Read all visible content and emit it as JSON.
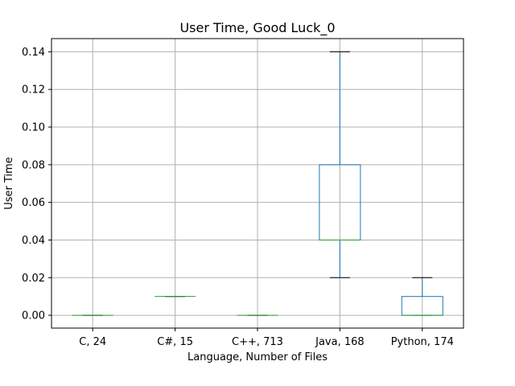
{
  "chart_data": {
    "type": "box",
    "title": "User Time, Good Luck_0",
    "xlabel": "Language, Number of Files",
    "ylabel": "User Time",
    "ylim": [
      -0.0068,
      0.147
    ],
    "yticks": [
      "0.00",
      "0.02",
      "0.04",
      "0.06",
      "0.08",
      "0.10",
      "0.12",
      "0.14"
    ],
    "grid": true,
    "colors": {
      "box": "#1f77b4",
      "median": "#2ca02c",
      "whisker": "#1f77b4",
      "cap": "#000000"
    },
    "categories": [
      "C, 24",
      "C#, 15",
      "C++, 713",
      "Java, 168",
      "Python, 174"
    ],
    "boxes": [
      {
        "whislo": 0.0,
        "q1": 0.0,
        "med": 0.0,
        "q3": 0.0,
        "whishi": 0.0
      },
      {
        "whislo": 0.01,
        "q1": 0.01,
        "med": 0.01,
        "q3": 0.01,
        "whishi": 0.01
      },
      {
        "whislo": 0.0,
        "q1": 0.0,
        "med": 0.0,
        "q3": 0.0,
        "whishi": 0.0
      },
      {
        "whislo": 0.02,
        "q1": 0.04,
        "med": 0.04,
        "q3": 0.08,
        "whishi": 0.14
      },
      {
        "whislo": 0.0,
        "q1": 0.0,
        "med": 0.0,
        "q3": 0.01,
        "whishi": 0.02
      }
    ]
  }
}
